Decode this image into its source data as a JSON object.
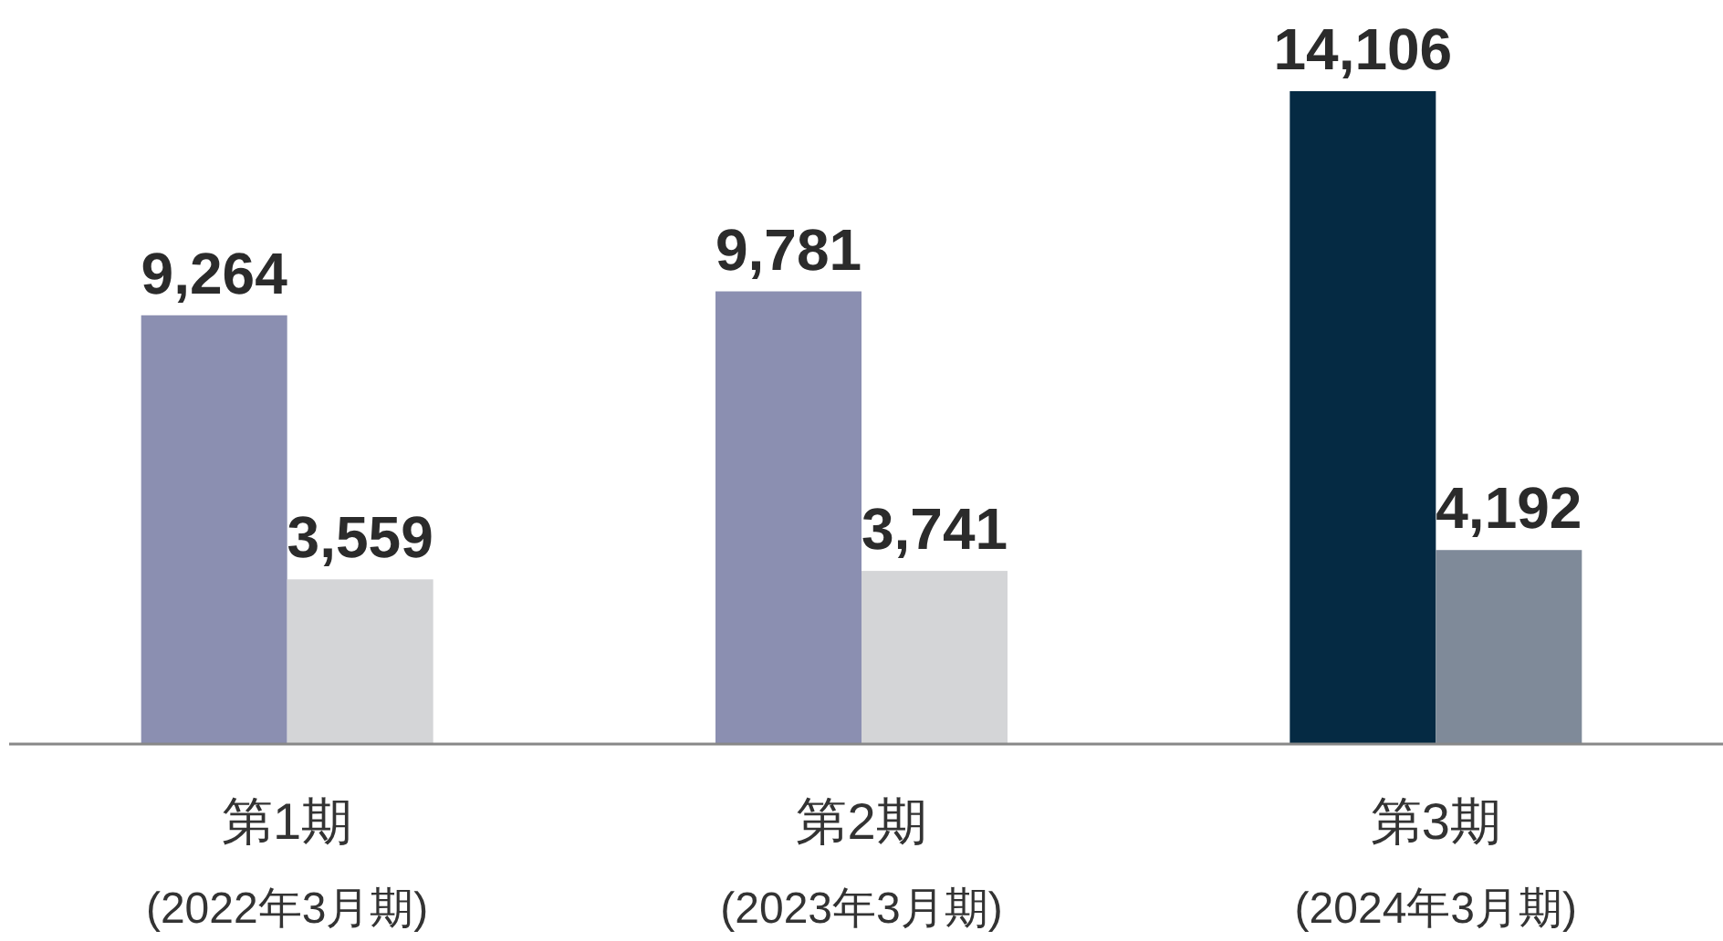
{
  "chart_data": {
    "type": "bar",
    "categories": [
      "第1期\n(2022年3月期)",
      "第2期\n(2023年3月期)",
      "第3期\n(2024年3月期)"
    ],
    "series": [
      {
        "colors": [
          "#8b8fb1",
          "#8b8fb1",
          "#052a43"
        ],
        "values": [
          9264,
          9781,
          14106
        ],
        "value_labels": [
          "9,264",
          "9,781",
          "14,106"
        ]
      },
      {
        "colors": [
          "#d4d5d7",
          "#d4d5d7",
          "#7f8a99"
        ],
        "values": [
          3559,
          3741,
          4192
        ],
        "value_labels": [
          "3,559",
          "3,741",
          "4,192"
        ]
      }
    ]
  }
}
